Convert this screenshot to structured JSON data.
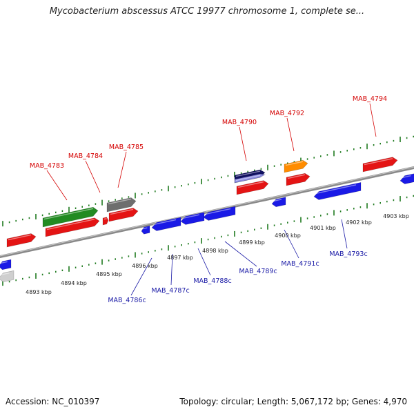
{
  "title": "Mycobacterium abscessus ATCC 19977 chromosome 1, complete se...",
  "footer": {
    "accession": "Accession: NC_010397",
    "summary": "Topology: circular; Length: 5,067,172 bp; Genes: 4,970"
  },
  "colors": {
    "forward_label": "#d40000",
    "reverse_label": "#1a1aa6",
    "tick": "#1e7a1e",
    "backbone": "#888888"
  },
  "scale_labels": [
    "4893 kbp",
    "4894 kbp",
    "4895 kbp",
    "4896 kbp",
    "4897 kbp",
    "4898 kbp",
    "4899 kbp",
    "4900 kbp",
    "4901 kbp",
    "4902 kbp",
    "4903 kbp"
  ],
  "forward_genes": [
    "MAB_4783",
    "MAB_4784",
    "MAB_4785",
    "MAB_4790",
    "MAB_4792",
    "MAB_4794"
  ],
  "reverse_genes": [
    "MAB_4786c",
    "MAB_4787c",
    "MAB_4788c",
    "MAB_4789c",
    "MAB_4791c",
    "MAB_4793c"
  ]
}
